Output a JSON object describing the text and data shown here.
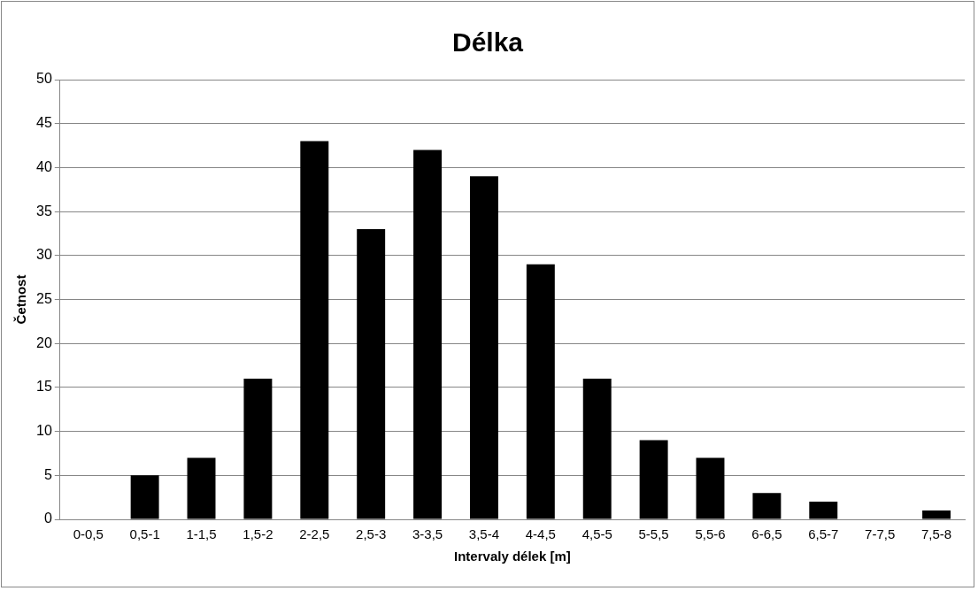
{
  "chart_data": {
    "type": "bar",
    "title": "Délka",
    "xlabel": "Intervaly délek [m]",
    "ylabel": "Četnost",
    "categories": [
      "0-0,5",
      "0,5-1",
      "1-1,5",
      "1,5-2",
      "2-2,5",
      "2,5-3",
      "3-3,5",
      "3,5-4",
      "4-4,5",
      "4,5-5",
      "5-5,5",
      "5,5-6",
      "6-6,5",
      "6,5-7",
      "7-7,5",
      "7,5-8"
    ],
    "values": [
      0,
      5,
      7,
      16,
      43,
      33,
      42,
      39,
      29,
      16,
      9,
      7,
      3,
      2,
      0,
      1
    ],
    "color": "#000000",
    "ylim": [
      0,
      50
    ],
    "yticks": [
      0,
      5,
      10,
      15,
      20,
      25,
      30,
      35,
      40,
      45,
      50
    ],
    "grid": "y",
    "legend": false
  }
}
